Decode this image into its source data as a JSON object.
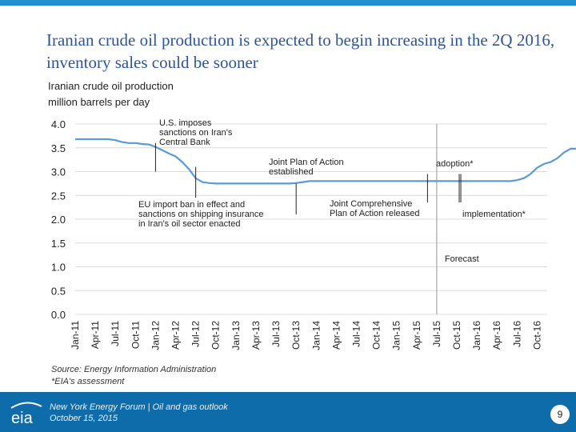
{
  "slide": {
    "title": "Iranian crude oil production is expected to begin increasing in the 2Q 2016, inventory sales could be sooner"
  },
  "chart_data": {
    "type": "line",
    "title": "Iranian crude oil production",
    "ylabel": "million barrels per day",
    "xlabel": "",
    "ylim": [
      0,
      4.0
    ],
    "yticks": [
      "4.0",
      "3.5",
      "3.0",
      "2.5",
      "2.0",
      "1.5",
      "1.0",
      "0.5",
      "0.0"
    ],
    "categories": [
      "Jan-11",
      "Apr-11",
      "Jul-11",
      "Oct-11",
      "Jan-12",
      "Apr-12",
      "Jul-12",
      "Oct-12",
      "Jan-13",
      "Apr-13",
      "Jul-13",
      "Oct-13",
      "Jan-14",
      "Apr-14",
      "Jul-14",
      "Oct-14",
      "Jan-15",
      "Apr-15",
      "Jul-15",
      "Oct-15",
      "Jan-16",
      "Apr-16",
      "Jul-16",
      "Oct-16"
    ],
    "series": [
      {
        "name": "Iranian crude oil production",
        "values_by_month": [
          3.68,
          3.68,
          3.68,
          3.68,
          3.68,
          3.68,
          3.66,
          3.62,
          3.6,
          3.6,
          3.58,
          3.57,
          3.52,
          3.45,
          3.38,
          3.32,
          3.2,
          3.05,
          2.86,
          2.78,
          2.76,
          2.75,
          2.75,
          2.75,
          2.75,
          2.75,
          2.75,
          2.75,
          2.75,
          2.75,
          2.75,
          2.75,
          2.75,
          2.76,
          2.78,
          2.8,
          2.8,
          2.8,
          2.8,
          2.8,
          2.8,
          2.8,
          2.8,
          2.8,
          2.8,
          2.8,
          2.8,
          2.8,
          2.8,
          2.8,
          2.8,
          2.8,
          2.8,
          2.8,
          2.8,
          2.8,
          2.8,
          2.8,
          2.8,
          2.8,
          2.8,
          2.8,
          2.8,
          2.8,
          2.8,
          2.8,
          2.82,
          2.86,
          2.95,
          3.08,
          3.16,
          3.2,
          3.28,
          3.4,
          3.48,
          3.48
        ]
      }
    ],
    "forecast_start": "Jul-15",
    "forecast_label": "Forecast",
    "annotations": [
      {
        "text": [
          "U.S. imposes",
          "sanctions on Iran's",
          "Central Bank"
        ],
        "date_index": 4,
        "y_range": [
          3.6,
          3.0
        ]
      },
      {
        "text": [
          "EU import ban in effect and",
          "sanctions on shipping insurance",
          "in Iran's oil sector enacted"
        ],
        "date_index": 6,
        "y_range": [
          3.1,
          2.45
        ]
      },
      {
        "text": [
          "Joint Plan of Action",
          "established"
        ],
        "date_index": 11,
        "y_range": [
          2.75,
          2.1
        ]
      },
      {
        "text": [
          "Joint Comprehensive",
          "Plan of Action released"
        ],
        "date_index": 17.7,
        "y_range": [
          2.95,
          2.35
        ]
      },
      {
        "text": [
          "adoption*"
        ],
        "date_index": 19,
        "y_range": [
          2.95,
          2.35
        ]
      },
      {
        "text": [
          "implementation*"
        ],
        "date_index": 19.2,
        "y_range": [
          2.95,
          2.35
        ]
      }
    ],
    "source": "Source: Energy Information Administration",
    "footnote": "*EIA's assessment"
  },
  "footer": {
    "line1": "New York Energy Forum | Oil and gas outlook",
    "line2": "October 15, 2015",
    "page_number": "9",
    "logo_text": "eia"
  },
  "colors": {
    "line": "#5b9bd5",
    "title": "#2f5597",
    "footer_bg": "#0f6cab",
    "topbar": "#1f8fd0",
    "grid": "#dcdcdc"
  }
}
